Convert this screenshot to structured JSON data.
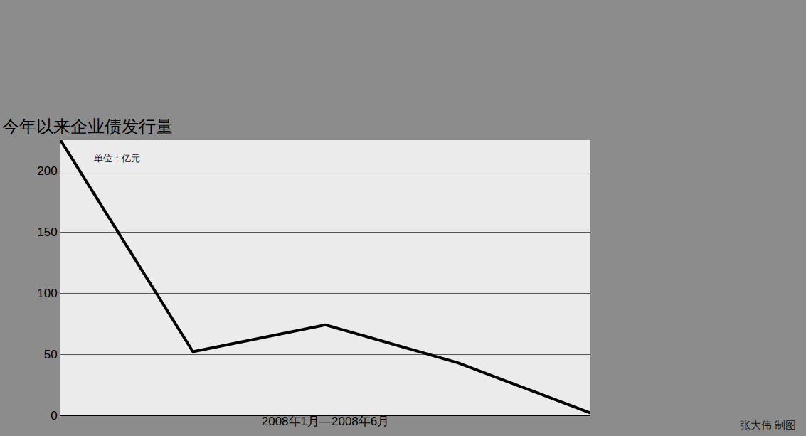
{
  "chart_data": {
    "type": "line",
    "title": "今年以来企业债发行量",
    "x_label": "2008年1月—2008年6月",
    "annotations": [
      "单位：亿元",
      "张大伟 制图"
    ],
    "categories": [
      null,
      null,
      null,
      null,
      null
    ],
    "values": [
      225,
      52,
      74,
      43,
      2
    ],
    "color": "#000000",
    "ylim": [
      0,
      225
    ],
    "yticks": [
      0,
      50,
      100,
      150,
      200
    ],
    "grid": true,
    "tick_labels": "y"
  }
}
